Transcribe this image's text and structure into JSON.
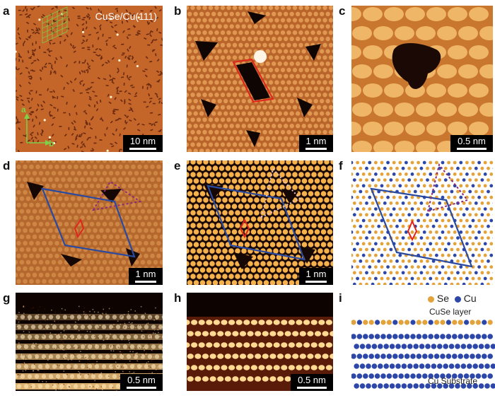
{
  "labels": [
    "a",
    "b",
    "c",
    "d",
    "e",
    "f",
    "g",
    "h",
    "i"
  ],
  "panel_a": {
    "title": "CuSe/Cu(111)",
    "scale": "10 nm",
    "axis_a": "a",
    "axis_b": "b"
  },
  "panel_b": {
    "scale": "1 nm"
  },
  "panel_c": {
    "scale": "0.5 nm"
  },
  "panel_d": {
    "scale": "1 nm"
  },
  "panel_e": {
    "scale": "1 nm"
  },
  "panel_g": {
    "scale": "0.5 nm"
  },
  "panel_h": {
    "scale": "0.5 nm"
  },
  "panel_i": {
    "legend_se": "Se",
    "legend_cu": "Cu",
    "top_label": "CuSe layer",
    "bottom_label": "Cu Substrate"
  },
  "colors": {
    "stm_bg": "#c8692a",
    "stm_bright": "#f3c47a",
    "se": "#e3a23a",
    "cu": "#2c47a8",
    "cell": "#2a4aa0",
    "red": "#e0261c",
    "purple": "#8b2a7a"
  }
}
